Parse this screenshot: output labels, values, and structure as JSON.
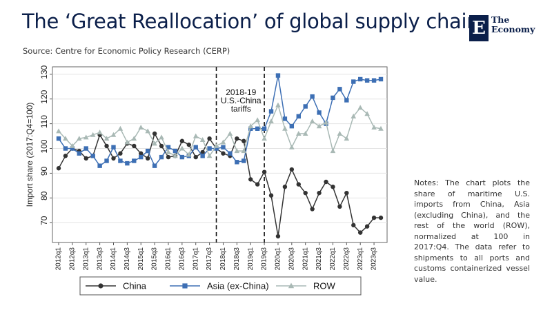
{
  "title": "The ‘Great Reallocation’ of global supply chains",
  "source": "Source: Centre for Economic Policy Research (CERP)",
  "brand": {
    "mark": "E",
    "line1": "The",
    "line2": "Economy",
    "color": "#0b1f4a"
  },
  "notes": "Notes: The chart plots the share of maritime U.S. imports from China, Asia (excluding China), and the rest of the world (ROW), normalized at 100 in 2017:Q4. The data refer to shipments to all ports and customs containerized vessel value.",
  "chart_data": {
    "type": "line",
    "ylabel": "Import share (2017:Q4=100)",
    "ylim": [
      62,
      133
    ],
    "yticks": [
      70,
      80,
      90,
      100,
      110,
      120,
      130
    ],
    "x": [
      "2012q1",
      "2012q2",
      "2012q3",
      "2012q4",
      "2013q1",
      "2013q2",
      "2013q3",
      "2013q4",
      "2014q1",
      "2014q2",
      "2014q3",
      "2014q4",
      "2015q1",
      "2015q2",
      "2015q3",
      "2015q4",
      "2016q1",
      "2016q2",
      "2016q3",
      "2016q4",
      "2017q1",
      "2017q2",
      "2017q3",
      "2017q4",
      "2018q1",
      "2018q2",
      "2018q3",
      "2018q4",
      "2019q1",
      "2019q2",
      "2019q3",
      "2019q4",
      "2020q1",
      "2020q2",
      "2020q3",
      "2020q4",
      "2021q1",
      "2021q2",
      "2021q3",
      "2021q4",
      "2022q1",
      "2022q2",
      "2022q3",
      "2022q4",
      "2023q1",
      "2023q2",
      "2023q3",
      "2023q4"
    ],
    "xticklabels": [
      "2012q1",
      "2012q3",
      "2013q1",
      "2013q3",
      "2014q1",
      "2014q3",
      "2015q1",
      "2015q3",
      "2016q1",
      "2016q3",
      "2017q1",
      "2017q3",
      "2018q1",
      "2018q3",
      "2019q1",
      "2019q3",
      "2020q1",
      "2020q3",
      "2021q1",
      "2021q3",
      "2022q1",
      "2022q3",
      "2023q1",
      "2023q3"
    ],
    "vlines": [
      "2017q4",
      "2019q3"
    ],
    "annotation": {
      "lines": [
        "2018-19",
        "U.S.-China",
        "tariffs"
      ],
      "at": "2018q4"
    },
    "series": [
      {
        "name": "China",
        "color": "#333333",
        "marker": "circle",
        "values": [
          92,
          97,
          100,
          99,
          96,
          97,
          105.5,
          101,
          96,
          98,
          102,
          101,
          98,
          96,
          106,
          101,
          96.5,
          97,
          103,
          101.5,
          96.5,
          98.5,
          104,
          100,
          98,
          97,
          104,
          103,
          87.5,
          85.5,
          90.5,
          81,
          64.5,
          84.5,
          91.5,
          85.5,
          82,
          75.5,
          82,
          86.5,
          84.5,
          76.5,
          82,
          69,
          66,
          68.5,
          72,
          72
        ]
      },
      {
        "name": "Asia (ex-China)",
        "color": "#3d6fb4",
        "marker": "square",
        "values": [
          104,
          100,
          100,
          98,
          100,
          97,
          93,
          95,
          100.5,
          95,
          94,
          95,
          96.5,
          99,
          93,
          96.5,
          100.5,
          99,
          96.5,
          97,
          100.5,
          97,
          100,
          100,
          100.5,
          98,
          94.5,
          95,
          108,
          108,
          108,
          115,
          129.5,
          112,
          109,
          113,
          117,
          121,
          114.5,
          110,
          120.5,
          124,
          119.5,
          127,
          128,
          127.5,
          127.5,
          128
        ]
      },
      {
        "name": "ROW",
        "color": "#a9b9b5",
        "marker": "triangle",
        "values": [
          107,
          104,
          101,
          104,
          104.5,
          105.5,
          106.5,
          104,
          105.5,
          108,
          102.5,
          104,
          108.5,
          107,
          102,
          104.5,
          98.5,
          97,
          100,
          97.5,
          105,
          103.5,
          97,
          101,
          102.5,
          106,
          99,
          99,
          109,
          111.5,
          104,
          111,
          117.5,
          108,
          100.5,
          106,
          106,
          111,
          109,
          110.5,
          99,
          106,
          104,
          113,
          116.5,
          114,
          108.5,
          108
        ]
      }
    ]
  }
}
